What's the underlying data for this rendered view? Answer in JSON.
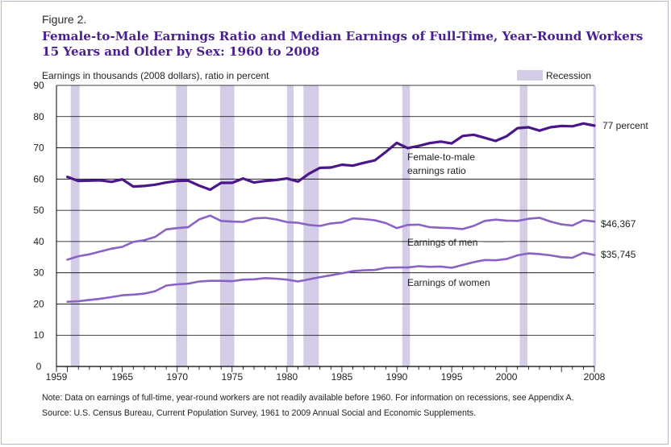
{
  "figure_label": "Figure 2.",
  "title_line1": "Female-to-Male Earnings Ratio and Median Earnings of Full-Time, Year-Round Workers",
  "title_line2": "15 Years and Older by Sex: 1960 to 2008",
  "note": "Note:  Data on earnings of full-time, year-round workers are not readily available before 1960. For information on recessions, see Appendix A.",
  "source": "Source:  U.S. Census Bureau, Current Population Survey, 1961 to 2009 Annual Social and Economic Supplements.",
  "colors": {
    "ratio": "#4a1689",
    "men": "#8a62c4",
    "women": "#8a62c4",
    "recession": "#d5cce8",
    "grid": "#000000",
    "text": "#222222"
  },
  "chart_data": {
    "type": "line",
    "ylabel": "Earnings in thousands (2008 dollars), ratio in percent",
    "ylim": [
      0,
      90
    ],
    "yticks": [
      0,
      10,
      20,
      30,
      40,
      50,
      60,
      70,
      80,
      90
    ],
    "xlim": [
      1959,
      2008
    ],
    "xtick_labels": [
      {
        "year": 1959,
        "label": "1959"
      },
      {
        "year": 1965,
        "label": "1965"
      },
      {
        "year": 1970,
        "label": "1970"
      },
      {
        "year": 1975,
        "label": "1975"
      },
      {
        "year": 1980,
        "label": "1980"
      },
      {
        "year": 1985,
        "label": "1985"
      },
      {
        "year": 1990,
        "label": "1990"
      },
      {
        "year": 1995,
        "label": "1995"
      },
      {
        "year": 2000,
        "label": "2000"
      },
      {
        "year": 2008,
        "label": "2008"
      }
    ],
    "grid": "horizontal",
    "legend": {
      "label": "Recession",
      "placement": "top-right"
    },
    "recessions": [
      [
        1960.3,
        1961.1
      ],
      [
        1969.9,
        1970.9
      ],
      [
        1973.9,
        1975.2
      ],
      [
        1980.0,
        1980.6
      ],
      [
        1981.5,
        1982.9
      ],
      [
        1990.5,
        1991.2
      ],
      [
        2001.2,
        2001.9
      ],
      [
        2007.9,
        2008.9
      ]
    ],
    "x": [
      1960,
      1961,
      1962,
      1963,
      1964,
      1965,
      1966,
      1967,
      1968,
      1969,
      1970,
      1971,
      1972,
      1973,
      1974,
      1975,
      1976,
      1977,
      1978,
      1979,
      1980,
      1981,
      1982,
      1983,
      1984,
      1985,
      1986,
      1987,
      1988,
      1989,
      1990,
      1991,
      1992,
      1993,
      1994,
      1995,
      1996,
      1997,
      1998,
      1999,
      2000,
      2001,
      2002,
      2003,
      2004,
      2005,
      2006,
      2007,
      2008
    ],
    "series": [
      {
        "key": "ratio",
        "values": [
          60.7,
          59.4,
          59.5,
          59.6,
          59.1,
          59.9,
          57.6,
          57.8,
          58.2,
          58.9,
          59.4,
          59.5,
          57.9,
          56.6,
          58.8,
          58.8,
          60.2,
          58.9,
          59.4,
          59.7,
          60.2,
          59.2,
          61.7,
          63.6,
          63.7,
          64.6,
          64.3,
          65.2,
          66.0,
          68.7,
          71.6,
          69.9,
          70.6,
          71.5,
          72.0,
          71.4,
          73.8,
          74.2,
          73.2,
          72.2,
          73.7,
          76.3,
          76.6,
          75.5,
          76.6,
          77.0,
          76.9,
          77.8,
          77.1
        ],
        "label_line1": "Female-to-male",
        "label_line2": "earnings ratio",
        "end_label": "77 percent"
      },
      {
        "key": "men",
        "values": [
          34.2,
          35.3,
          35.9,
          36.8,
          37.7,
          38.3,
          39.9,
          40.4,
          41.5,
          43.9,
          44.3,
          44.6,
          47.1,
          48.3,
          46.6,
          46.4,
          46.3,
          47.4,
          47.6,
          47.1,
          46.2,
          46.0,
          45.3,
          45.0,
          45.8,
          46.1,
          47.4,
          47.2,
          46.8,
          45.9,
          44.3,
          45.3,
          45.4,
          44.6,
          44.4,
          44.3,
          44.0,
          45.0,
          46.6,
          47.0,
          46.7,
          46.6,
          47.3,
          47.6,
          46.4,
          45.5,
          45.1,
          46.8,
          46.4
        ],
        "label": "Earnings of men",
        "end_label": "$46,367"
      },
      {
        "key": "women",
        "values": [
          20.7,
          20.9,
          21.3,
          21.7,
          22.2,
          22.8,
          23.0,
          23.3,
          24.1,
          25.9,
          26.3,
          26.5,
          27.2,
          27.4,
          27.4,
          27.3,
          27.8,
          27.9,
          28.3,
          28.1,
          27.8,
          27.2,
          27.9,
          28.6,
          29.2,
          29.8,
          30.5,
          30.8,
          30.9,
          31.6,
          31.7,
          31.7,
          32.1,
          31.9,
          32.0,
          31.6,
          32.5,
          33.4,
          34.1,
          34.0,
          34.4,
          35.6,
          36.2,
          36.0,
          35.6,
          35.0,
          34.8,
          36.4,
          35.7
        ],
        "label": "Earnings of women",
        "end_label": "$35,745"
      }
    ]
  }
}
